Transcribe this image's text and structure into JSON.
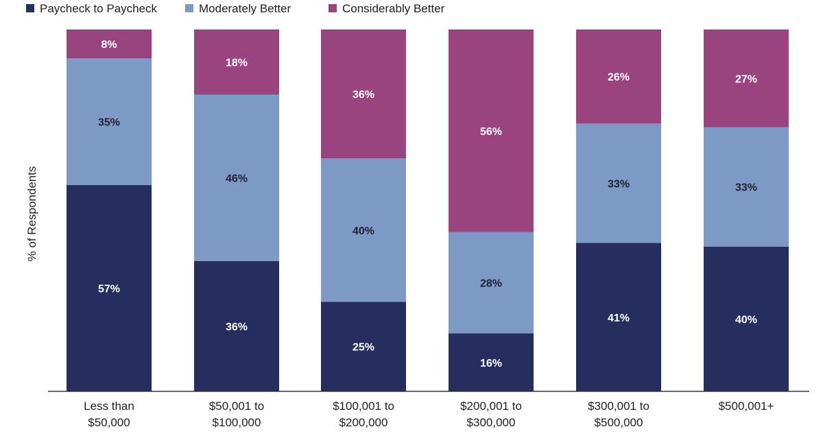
{
  "chart_data": {
    "type": "bar",
    "stacked": true,
    "ylabel": "% of Respondents",
    "categories": [
      "Less than\n$50,000",
      "$50,001 to\n$100,000",
      "$100,001 to\n$200,000",
      "$200,001 to\n$300,000",
      "$300,001 to\n$500,000",
      "$500,001+"
    ],
    "ylim": [
      0,
      100
    ],
    "legend_position": "top-left",
    "series": [
      {
        "name": "Paycheck to Paycheck",
        "color": "#252e5e",
        "label_color": "#ffffff",
        "values": [
          57,
          36,
          25,
          16,
          41,
          40
        ]
      },
      {
        "name": "Moderately Better",
        "color": "#7d9ac6",
        "label_color": "#1f2233",
        "values": [
          35,
          46,
          40,
          28,
          33,
          33
        ]
      },
      {
        "name": "Considerably Better",
        "color": "#99447f",
        "label_color": "#ffffff",
        "values": [
          8,
          18,
          36,
          56,
          26,
          27
        ]
      }
    ]
  }
}
